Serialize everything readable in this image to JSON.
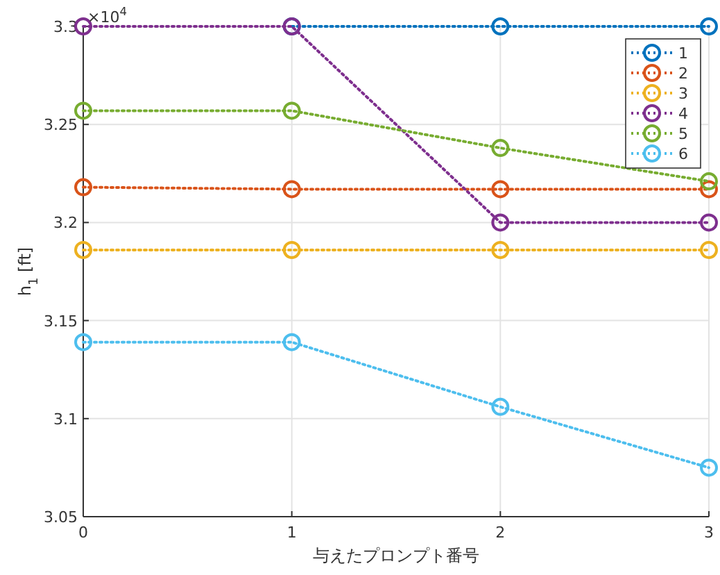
{
  "chart_data": {
    "type": "line",
    "xlabel": "与えたプロンプト番号",
    "ylabel": "h$_{1}$ [ft]",
    "annotations": [
      "×10$^{4}$"
    ],
    "x": [
      0,
      1,
      2,
      3
    ],
    "xlim": [
      0,
      3
    ],
    "xticks": [
      0,
      1,
      2,
      3
    ],
    "ylim": [
      3.05,
      3.3
    ],
    "yticks": [
      3.05,
      3.1,
      3.15,
      3.2,
      3.25,
      3.3
    ],
    "grid": true,
    "legend": "top right",
    "marker": "circle",
    "line_style": "dotted",
    "series": [
      {
        "name": "1",
        "color": "#0072bd",
        "values": [
          null,
          3.3,
          3.3,
          3.3
        ]
      },
      {
        "name": "2",
        "color": "#d95319",
        "values": [
          3.218,
          3.217,
          3.217,
          3.217
        ]
      },
      {
        "name": "3",
        "color": "#edb120",
        "values": [
          3.186,
          3.186,
          3.186,
          3.186
        ]
      },
      {
        "name": "4",
        "color": "#7e2f8e",
        "values": [
          3.3,
          3.3,
          3.2,
          3.2
        ]
      },
      {
        "name": "5",
        "color": "#77ac30",
        "values": [
          3.257,
          3.257,
          3.238,
          3.221
        ]
      },
      {
        "name": "6",
        "color": "#4dbeee",
        "values": [
          3.139,
          3.139,
          3.106,
          3.075
        ]
      }
    ]
  }
}
